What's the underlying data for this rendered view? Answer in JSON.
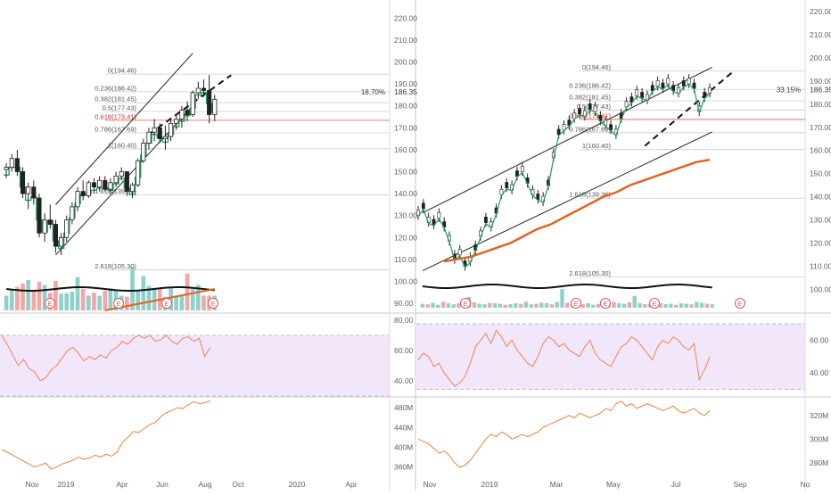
{
  "chart_data": [
    {
      "type": "candlestick",
      "panel": "left-weekly",
      "x_labels": [
        "Nov",
        "2019",
        "Apr",
        "Jun",
        "Aug",
        "Oct",
        "2020",
        "Apr"
      ],
      "price_axis": {
        "min": 88,
        "max": 225,
        "ticks": [
          220,
          210,
          200,
          190,
          180,
          170,
          160,
          150,
          140,
          130,
          120,
          110,
          100,
          90
        ],
        "tick_labels": [
          "220.00",
          "210.00",
          "200.00",
          "190.00",
          "180.00",
          "170.00",
          "160.00",
          "150.00",
          "140.00",
          "130.00",
          "120.00",
          "110.00",
          "100.00",
          "90.00"
        ]
      },
      "last_price_label": "186.35",
      "change_label": "18.70%",
      "candles": [
        [
          151,
          154,
          147,
          152
        ],
        [
          152,
          158,
          150,
          156
        ],
        [
          156,
          160,
          148,
          150
        ],
        [
          150,
          152,
          138,
          140
        ],
        [
          140,
          145,
          133,
          143
        ],
        [
          143,
          146,
          135,
          138
        ],
        [
          138,
          140,
          120,
          122
        ],
        [
          122,
          131,
          118,
          128
        ],
        [
          128,
          135,
          124,
          126
        ],
        [
          126,
          128,
          113,
          116
        ],
        [
          116,
          122,
          112,
          120
        ],
        [
          120,
          130,
          118,
          128
        ],
        [
          128,
          136,
          126,
          134
        ],
        [
          134,
          143,
          132,
          141
        ],
        [
          141,
          146,
          137,
          139
        ],
        [
          139,
          146,
          138,
          145
        ],
        [
          145,
          147,
          140,
          143
        ],
        [
          143,
          148,
          141,
          146
        ],
        [
          146,
          148,
          141,
          142
        ],
        [
          142,
          147,
          140,
          145
        ],
        [
          145,
          150,
          143,
          148
        ],
        [
          148,
          152,
          146,
          150
        ],
        [
          150,
          150,
          139,
          141
        ],
        [
          141,
          145,
          138,
          144
        ],
        [
          144,
          156,
          143,
          155
        ],
        [
          155,
          165,
          154,
          163
        ],
        [
          163,
          170,
          160,
          168
        ],
        [
          168,
          174,
          164,
          170
        ],
        [
          170,
          172,
          163,
          165
        ],
        [
          165,
          171,
          160,
          166
        ],
        [
          166,
          174,
          164,
          172
        ],
        [
          172,
          176,
          169,
          174
        ],
        [
          174,
          180,
          170,
          178
        ],
        [
          178,
          182,
          173,
          176
        ],
        [
          176,
          187,
          175,
          186
        ],
        [
          186,
          191,
          183,
          188
        ],
        [
          188,
          192,
          184,
          187
        ],
        [
          187,
          194,
          172,
          176
        ],
        [
          176,
          185,
          173,
          183
        ]
      ],
      "volume": [
        30,
        42,
        48,
        55,
        62,
        40,
        58,
        52,
        36,
        60,
        34,
        35,
        38,
        68,
        44,
        30,
        36,
        30,
        40,
        45,
        40,
        30,
        28,
        88,
        40,
        70,
        50,
        46,
        44,
        28,
        45,
        30,
        30,
        75,
        46,
        52,
        30,
        30,
        30
      ],
      "volume_colors": "up-teal/down-salmon",
      "fib_levels": [
        {
          "label": "0(194.46)",
          "value": 194.46
        },
        {
          "label": "0.236(186.42)",
          "value": 186.42
        },
        {
          "label": "0.382(181.45)",
          "value": 181.45
        },
        {
          "label": "0.5(177.43)",
          "value": 177.43
        },
        {
          "label": "0.618(173.41)",
          "value": 173.41
        },
        {
          "label": "0.786(167.69)",
          "value": 167.69
        },
        {
          "label": "1(160.40)",
          "value": 160.4
        },
        {
          "label": "1.618(139.36)",
          "value": 139.36
        },
        {
          "label": "2.618(105.30)",
          "value": 105.3
        }
      ],
      "channel": {
        "lower": [
          [
            9,
            112
          ],
          [
            34,
            180
          ]
        ],
        "upper": [
          [
            9,
            135
          ],
          [
            34,
            204
          ]
        ]
      },
      "trendline_dashed": [
        [
          26,
          167
        ],
        [
          41,
          194
        ]
      ],
      "earnings_markers": [
        "E",
        "E",
        "E",
        "E"
      ],
      "rsi": {
        "ticks": [
          80,
          60,
          40
        ],
        "tick_labels": [
          "80.00",
          "60.00",
          "40.00"
        ],
        "band": [
          30,
          70
        ],
        "values": [
          70,
          64,
          57,
          50,
          54,
          48,
          46,
          40,
          42,
          47,
          50,
          55,
          60,
          62,
          58,
          53,
          56,
          54,
          57,
          55,
          60,
          62,
          66,
          64,
          68,
          70,
          68,
          70,
          66,
          67,
          70,
          66,
          64,
          68,
          69,
          66,
          68,
          56,
          62
        ]
      },
      "obv": {
        "tick_labels": [
          "480M",
          "440M",
          "400M",
          "360M"
        ],
        "ticks": [
          480,
          440,
          400,
          360
        ],
        "min": 345,
        "max": 500,
        "values": [
          395,
          390,
          384,
          378,
          372,
          366,
          360,
          364,
          368,
          356,
          360,
          366,
          370,
          374,
          380,
          376,
          378,
          384,
          380,
          386,
          382,
          390,
          410,
          420,
          432,
          430,
          438,
          446,
          450,
          462,
          470,
          474,
          480,
          478,
          486,
          492,
          488,
          490,
          494
        ]
      }
    },
    {
      "type": "candlestick",
      "panel": "right-daily",
      "x_labels": [
        "Nov",
        "2019",
        "Mar",
        "May",
        "Jul",
        "Sep",
        "No"
      ],
      "price_axis": {
        "min": 92,
        "max": 222,
        "ticks": [
          220,
          210,
          200,
          190,
          180,
          170,
          160,
          150,
          140,
          130,
          120,
          110,
          100
        ],
        "tick_labels": [
          "220.00",
          "210.00",
          "200.00",
          "190.00",
          "180.00",
          "170.00",
          "160.00",
          "150.00",
          "140.00",
          "130.00",
          "120.00",
          "110.00",
          "100.00"
        ]
      },
      "last_price_label": "186.35",
      "change_label": "33.15%",
      "close_path": [
        133,
        136,
        130,
        129,
        132,
        128,
        122,
        114,
        116,
        111,
        113,
        118,
        124,
        130,
        128,
        134,
        142,
        145,
        144,
        150,
        152,
        147,
        142,
        140,
        139,
        146,
        158,
        168,
        170,
        172,
        175,
        177,
        176,
        179,
        178,
        174,
        172,
        170,
        168,
        175,
        180,
        182,
        185,
        184,
        183,
        187,
        189,
        188,
        190,
        187,
        186,
        189,
        190,
        188,
        178,
        184,
        186
      ],
      "ma200_path": [
        112,
        113,
        114,
        116,
        118,
        120,
        123,
        126,
        128,
        131,
        134,
        137,
        140,
        142,
        145,
        147,
        149,
        151,
        153,
        155,
        156
      ],
      "volume": [
        8,
        7,
        10,
        6,
        12,
        9,
        7,
        9,
        14,
        22,
        11,
        8,
        7,
        10,
        9,
        8,
        6,
        7,
        9,
        8,
        12,
        7,
        8,
        10,
        9,
        7,
        12,
        38,
        10,
        9,
        8,
        7,
        9,
        6,
        8,
        7,
        10,
        12,
        9,
        8,
        11,
        24,
        9,
        7,
        8,
        10,
        9,
        7,
        8,
        6,
        9,
        8,
        7,
        12,
        10,
        8,
        7
      ],
      "fib_levels": [
        {
          "label": "0(194.46)",
          "value": 194.46
        },
        {
          "label": "0.236(186.42)",
          "value": 186.42
        },
        {
          "label": "0.382(181.45)",
          "value": 181.45
        },
        {
          "label": "0.5(177.43)",
          "value": 177.43
        },
        {
          "label": "0.618(173.41)",
          "value": 173.41
        },
        {
          "label": "0.786(167.69)",
          "value": 167.69
        },
        {
          "label": "1(160.40)",
          "value": 160.4
        },
        {
          "label": "1.618(139.36)",
          "value": 139.36
        },
        {
          "label": "2.618(105.30)",
          "value": 105.3
        }
      ],
      "channel": {
        "lower": [
          [
            0,
            108
          ],
          [
            56,
            168
          ]
        ],
        "upper": [
          [
            0,
            133
          ],
          [
            56,
            196
          ]
        ]
      },
      "trendline_dashed": [
        [
          43,
          162
        ],
        [
          60,
          194
        ]
      ],
      "earnings_markers": [
        "E",
        "E",
        "E",
        "E",
        "E"
      ],
      "rsi": {
        "ticks": [
          60,
          40
        ],
        "tick_labels": [
          "60.00",
          "40.00"
        ],
        "band": [
          30,
          70
        ],
        "values": [
          48,
          52,
          50,
          44,
          46,
          40,
          36,
          32,
          34,
          38,
          46,
          56,
          60,
          64,
          58,
          66,
          62,
          56,
          60,
          54,
          50,
          46,
          44,
          50,
          58,
          62,
          60,
          56,
          58,
          54,
          52,
          50,
          56,
          60,
          52,
          48,
          46,
          44,
          50,
          56,
          58,
          62,
          60,
          56,
          52,
          48,
          56,
          60,
          58,
          62,
          60,
          56,
          54,
          58,
          36,
          42,
          50
        ]
      },
      "obv": {
        "tick_labels": [
          "320M",
          "300M",
          "280M"
        ],
        "ticks": [
          320,
          300,
          280
        ],
        "min": 270,
        "max": 335,
        "values": [
          300,
          298,
          296,
          292,
          288,
          290,
          286,
          280,
          276,
          278,
          282,
          288,
          294,
          300,
          304,
          302,
          306,
          304,
          300,
          302,
          304,
          302,
          304,
          306,
          310,
          312,
          314,
          316,
          318,
          320,
          318,
          322,
          320,
          318,
          320,
          322,
          326,
          324,
          330,
          332,
          328,
          330,
          326,
          328,
          330,
          328,
          326,
          324,
          326,
          328,
          324,
          322,
          324,
          326,
          322,
          320,
          324
        ]
      }
    }
  ]
}
